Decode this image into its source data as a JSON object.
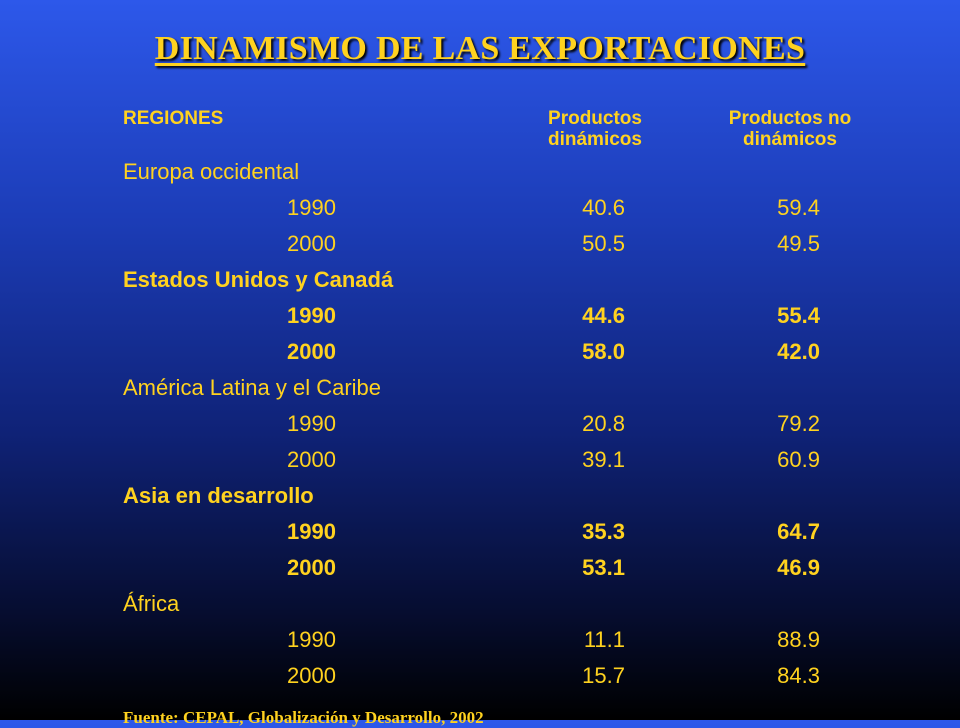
{
  "title": "DINAMISMO DE LAS EXPORTACIONES",
  "headers": {
    "regions": "REGIONES",
    "dynamic_line1": "Productos",
    "dynamic_line2": "dinámicos",
    "nondynamic_line1": "Productos no",
    "nondynamic_line2": "dinámicos"
  },
  "regions": [
    {
      "name": "Europa occidental",
      "bold": false,
      "rows": [
        {
          "year": "1990",
          "dynamic": "40.6",
          "nondynamic": "59.4"
        },
        {
          "year": "2000",
          "dynamic": "50.5",
          "nondynamic": "49.5"
        }
      ]
    },
    {
      "name": "Estados Unidos y Canadá",
      "bold": true,
      "rows": [
        {
          "year": "1990",
          "dynamic": "44.6",
          "nondynamic": "55.4"
        },
        {
          "year": "2000",
          "dynamic": "58.0",
          "nondynamic": "42.0"
        }
      ]
    },
    {
      "name": "América Latina y el Caribe",
      "bold": false,
      "rows": [
        {
          "year": "1990",
          "dynamic": "20.8",
          "nondynamic": "79.2"
        },
        {
          "year": "2000",
          "dynamic": "39.1",
          "nondynamic": "60.9"
        }
      ]
    },
    {
      "name": "Asia en desarrollo",
      "bold": true,
      "rows": [
        {
          "year": "1990",
          "dynamic": "35.3",
          "nondynamic": "64.7"
        },
        {
          "year": "2000",
          "dynamic": "53.1",
          "nondynamic": "46.9"
        }
      ]
    },
    {
      "name": "África",
      "bold": false,
      "rows": [
        {
          "year": "1990",
          "dynamic": "11.1",
          "nondynamic": "88.9"
        },
        {
          "year": "2000",
          "dynamic": "15.7",
          "nondynamic": "84.3"
        }
      ]
    }
  ],
  "source": "Fuente: CEPAL, Globalización y Desarrollo, 2002"
}
